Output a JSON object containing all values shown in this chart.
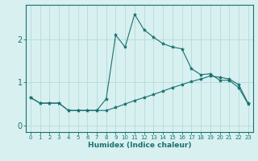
{
  "xlabel": "Humidex (Indice chaleur)",
  "ylabel": "",
  "bg_color": "#d8f0f0",
  "grid_color": "#b8dede",
  "line_color": "#1a7070",
  "xlim": [
    -0.5,
    23.5
  ],
  "ylim": [
    -0.15,
    2.8
  ],
  "xticks": [
    0,
    1,
    2,
    3,
    4,
    5,
    6,
    7,
    8,
    9,
    10,
    11,
    12,
    13,
    14,
    15,
    16,
    17,
    18,
    19,
    20,
    21,
    22,
    23
  ],
  "yticks": [
    0,
    1,
    2
  ],
  "series1_x": [
    0,
    1,
    2,
    3,
    4,
    5,
    6,
    7,
    8,
    9,
    10,
    11,
    12,
    13,
    14,
    15,
    16,
    17,
    18,
    19,
    20,
    21,
    22,
    23
  ],
  "series1_y": [
    0.65,
    0.52,
    0.52,
    0.52,
    0.35,
    0.35,
    0.35,
    0.35,
    0.62,
    2.1,
    1.82,
    2.58,
    2.22,
    2.05,
    1.9,
    1.82,
    1.78,
    1.32,
    1.18,
    1.2,
    1.05,
    1.05,
    0.88,
    0.5
  ],
  "series2_x": [
    0,
    1,
    2,
    3,
    4,
    5,
    6,
    7,
    8,
    9,
    10,
    11,
    12,
    13,
    14,
    15,
    16,
    17,
    18,
    19,
    20,
    21,
    22,
    23
  ],
  "series2_y": [
    0.65,
    0.52,
    0.52,
    0.52,
    0.35,
    0.35,
    0.35,
    0.35,
    0.35,
    0.42,
    0.5,
    0.58,
    0.65,
    0.72,
    0.8,
    0.88,
    0.95,
    1.02,
    1.08,
    1.15,
    1.12,
    1.08,
    0.95,
    0.52
  ],
  "xlabel_fontsize": 6.5,
  "ytick_fontsize": 7,
  "xtick_fontsize": 5.0
}
